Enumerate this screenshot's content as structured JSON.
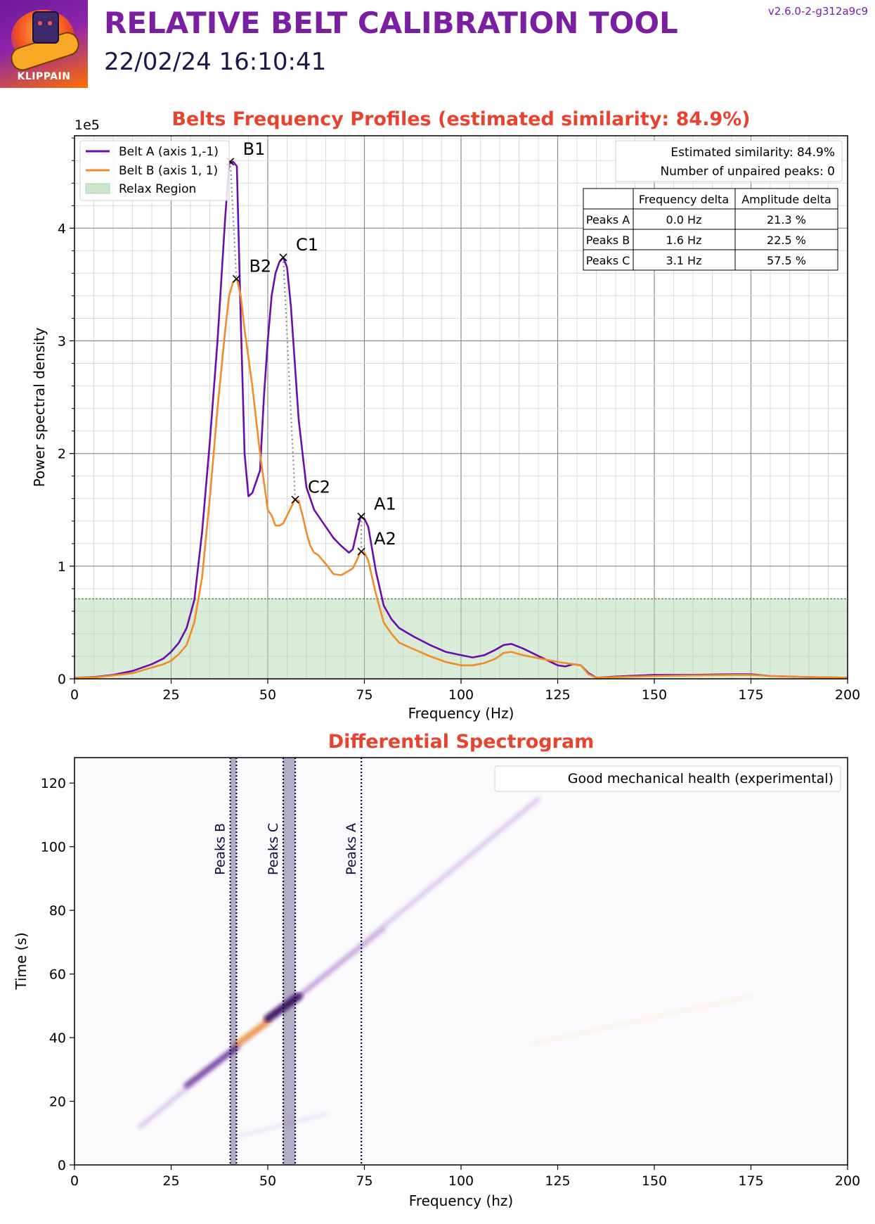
{
  "header": {
    "logo_text": "KLIPPAIN",
    "title": "RELATIVE BELT CALIBRATION TOOL",
    "datetime": "22/02/24 16:10:41",
    "version": "v2.6.0-2-g312a9c9"
  },
  "colors": {
    "title": "#7b1fa2",
    "chart_title": "#e8432e",
    "belt_a": "#6a0dad",
    "belt_b": "#f28c28",
    "relax_region": "#a8d5a8",
    "peak_band": "#2e1a5c"
  },
  "chart_data": [
    {
      "type": "line",
      "title": "Belts Frequency Profiles (estimated similarity: 84.9%)",
      "xlabel": "Frequency (Hz)",
      "ylabel": "Power spectral density",
      "y_scale_label": "1e5",
      "xlim": [
        0,
        200
      ],
      "ylim": [
        0,
        4.82
      ],
      "x_ticks": [
        "0",
        "25",
        "50",
        "75",
        "100",
        "125",
        "150",
        "175",
        "200"
      ],
      "y_ticks": [
        "0",
        "1",
        "2",
        "3",
        "4"
      ],
      "grid": true,
      "legend_position": "top-left",
      "series": [
        {
          "name": "Belt A (axis 1,-1)",
          "color": "#6a0dad",
          "points": [
            [
              0,
              0.01
            ],
            [
              5,
              0.015
            ],
            [
              10,
              0.035
            ],
            [
              15,
              0.07
            ],
            [
              20,
              0.13
            ],
            [
              23,
              0.18
            ],
            [
              25,
              0.24
            ],
            [
              27,
              0.32
            ],
            [
              29,
              0.45
            ],
            [
              31,
              0.7
            ],
            [
              33,
              1.3
            ],
            [
              35,
              2.1
            ],
            [
              37,
              3.0
            ],
            [
              39,
              4.1
            ],
            [
              40,
              4.57
            ],
            [
              41,
              4.59
            ],
            [
              42,
              4.55
            ],
            [
              43,
              3.2
            ],
            [
              44,
              2.0
            ],
            [
              45,
              1.62
            ],
            [
              46,
              1.65
            ],
            [
              47,
              1.75
            ],
            [
              48,
              1.85
            ],
            [
              49,
              2.5
            ],
            [
              50,
              3.0
            ],
            [
              51,
              3.4
            ],
            [
              52,
              3.6
            ],
            [
              53,
              3.7
            ],
            [
              54,
              3.74
            ],
            [
              55,
              3.65
            ],
            [
              56,
              3.3
            ],
            [
              57,
              2.8
            ],
            [
              58,
              2.3
            ],
            [
              59,
              2.0
            ],
            [
              60,
              1.7
            ],
            [
              61,
              1.6
            ],
            [
              62,
              1.5
            ],
            [
              63,
              1.45
            ],
            [
              65,
              1.35
            ],
            [
              67,
              1.25
            ],
            [
              69,
              1.18
            ],
            [
              71,
              1.12
            ],
            [
              72,
              1.15
            ],
            [
              73,
              1.3
            ],
            [
              74,
              1.44
            ],
            [
              75,
              1.42
            ],
            [
              76,
              1.35
            ],
            [
              77,
              1.15
            ],
            [
              78,
              0.95
            ],
            [
              80,
              0.65
            ],
            [
              82,
              0.53
            ],
            [
              84,
              0.45
            ],
            [
              88,
              0.37
            ],
            [
              92,
              0.3
            ],
            [
              96,
              0.24
            ],
            [
              100,
              0.21
            ],
            [
              103,
              0.19
            ],
            [
              106,
              0.21
            ],
            [
              109,
              0.26
            ],
            [
              111,
              0.3
            ],
            [
              113,
              0.31
            ],
            [
              116,
              0.27
            ],
            [
              119,
              0.22
            ],
            [
              122,
              0.17
            ],
            [
              125,
              0.12
            ],
            [
              127,
              0.11
            ],
            [
              129,
              0.13
            ],
            [
              131,
              0.12
            ],
            [
              133,
              0.05
            ],
            [
              135,
              0.01
            ],
            [
              140,
              0.02
            ],
            [
              150,
              0.035
            ],
            [
              160,
              0.035
            ],
            [
              170,
              0.04
            ],
            [
              175,
              0.04
            ],
            [
              180,
              0.025
            ],
            [
              190,
              0.015
            ],
            [
              200,
              0.01
            ]
          ]
        },
        {
          "name": "Belt B (axis 1, 1)",
          "color": "#f28c28",
          "points": [
            [
              0,
              0.01
            ],
            [
              5,
              0.012
            ],
            [
              10,
              0.03
            ],
            [
              15,
              0.05
            ],
            [
              20,
              0.1
            ],
            [
              23,
              0.13
            ],
            [
              25,
              0.16
            ],
            [
              27,
              0.22
            ],
            [
              29,
              0.3
            ],
            [
              31,
              0.5
            ],
            [
              33,
              0.9
            ],
            [
              35,
              1.6
            ],
            [
              37,
              2.4
            ],
            [
              39,
              3.1
            ],
            [
              40,
              3.4
            ],
            [
              41,
              3.52
            ],
            [
              42,
              3.55
            ],
            [
              43,
              3.4
            ],
            [
              44,
              3.1
            ],
            [
              46,
              2.6
            ],
            [
              47,
              2.3
            ],
            [
              48,
              2.0
            ],
            [
              49,
              1.75
            ],
            [
              50,
              1.5
            ],
            [
              51,
              1.45
            ],
            [
              52,
              1.36
            ],
            [
              53,
              1.36
            ],
            [
              54,
              1.38
            ],
            [
              55,
              1.45
            ],
            [
              56,
              1.52
            ],
            [
              57,
              1.59
            ],
            [
              58,
              1.58
            ],
            [
              59,
              1.45
            ],
            [
              60,
              1.3
            ],
            [
              61,
              1.18
            ],
            [
              62,
              1.12
            ],
            [
              63,
              1.1
            ],
            [
              65,
              1.02
            ],
            [
              67,
              0.93
            ],
            [
              69,
              0.92
            ],
            [
              71,
              0.96
            ],
            [
              72,
              0.98
            ],
            [
              73,
              1.05
            ],
            [
              74,
              1.13
            ],
            [
              75,
              1.12
            ],
            [
              76,
              1.05
            ],
            [
              78,
              0.75
            ],
            [
              80,
              0.5
            ],
            [
              82,
              0.4
            ],
            [
              84,
              0.32
            ],
            [
              88,
              0.26
            ],
            [
              92,
              0.2
            ],
            [
              96,
              0.15
            ],
            [
              100,
              0.12
            ],
            [
              103,
              0.12
            ],
            [
              106,
              0.14
            ],
            [
              109,
              0.18
            ],
            [
              111,
              0.23
            ],
            [
              113,
              0.24
            ],
            [
              116,
              0.21
            ],
            [
              119,
              0.19
            ],
            [
              122,
              0.17
            ],
            [
              125,
              0.15
            ],
            [
              127,
              0.14
            ],
            [
              129,
              0.13
            ],
            [
              131,
              0.12
            ],
            [
              133,
              0.04
            ],
            [
              135,
              0.01
            ],
            [
              140,
              0.015
            ],
            [
              150,
              0.025
            ],
            [
              160,
              0.03
            ],
            [
              170,
              0.035
            ],
            [
              175,
              0.035
            ],
            [
              180,
              0.025
            ],
            [
              190,
              0.015
            ],
            [
              200,
              0.01
            ]
          ]
        }
      ],
      "relax_region": {
        "label": "Relax Region",
        "y_max": 0.71
      },
      "peaks": [
        {
          "label": "B1",
          "freq": 40.3,
          "value": 4.59,
          "series": "A"
        },
        {
          "label": "B2",
          "freq": 41.9,
          "value": 3.55,
          "series": "B"
        },
        {
          "label": "C1",
          "freq": 54.0,
          "value": 3.74,
          "series": "A"
        },
        {
          "label": "C2",
          "freq": 57.1,
          "value": 1.59,
          "series": "B"
        },
        {
          "label": "A1",
          "freq": 74.2,
          "value": 1.44,
          "series": "A"
        },
        {
          "label": "A2",
          "freq": 74.2,
          "value": 1.13,
          "series": "B"
        }
      ],
      "peak_links": [
        {
          "from": "B1",
          "to": "B2"
        },
        {
          "from": "C1",
          "to": "C2"
        },
        {
          "from": "A1",
          "to": "A2"
        }
      ],
      "info_box": [
        "Estimated similarity: 84.9%",
        "Number of unpaired peaks: 0"
      ],
      "table": {
        "columns": [
          "",
          "Frequency delta",
          "Amplitude delta"
        ],
        "rows": [
          [
            "Peaks A",
            "0.0 Hz",
            "21.3 %"
          ],
          [
            "Peaks B",
            "1.6 Hz",
            "22.5 %"
          ],
          [
            "Peaks C",
            "3.1 Hz",
            "57.5 %"
          ]
        ]
      }
    },
    {
      "type": "heatmap",
      "title": "Differential Spectrogram",
      "xlabel": "Frequency (hz)",
      "ylabel": "Time (s)",
      "xlim": [
        0,
        200
      ],
      "ylim": [
        0,
        128
      ],
      "x_ticks": [
        "0",
        "25",
        "50",
        "75",
        "100",
        "125",
        "150",
        "175",
        "200"
      ],
      "y_ticks": [
        "0",
        "20",
        "40",
        "60",
        "80",
        "100",
        "120"
      ],
      "legend_text": "Good mechanical health (experimental)",
      "peak_bands": [
        {
          "label": "Peaks B",
          "f_min": 40.3,
          "f_max": 41.9
        },
        {
          "label": "Peaks C",
          "f_min": 54.0,
          "f_max": 57.1
        },
        {
          "label": "Peaks A",
          "f_min": 74.2,
          "f_max": 74.2
        }
      ],
      "streaks": [
        {
          "f0": 17,
          "t0": 12,
          "f1": 120,
          "t1": 115,
          "color": "#6a0dad",
          "opacity": 0.22,
          "width": 6
        },
        {
          "f0": 29,
          "t0": 25,
          "f1": 42,
          "t1": 37,
          "color": "#5a1a8a",
          "opacity": 0.75,
          "width": 8
        },
        {
          "f0": 42,
          "t0": 38,
          "f1": 50,
          "t1": 45,
          "color": "#f28c28",
          "opacity": 0.85,
          "width": 8
        },
        {
          "f0": 50,
          "t0": 46,
          "f1": 58,
          "t1": 53,
          "color": "#3b0a5e",
          "opacity": 0.95,
          "width": 11
        },
        {
          "f0": 58,
          "t0": 53,
          "f1": 80,
          "t1": 74,
          "color": "#7b3fb0",
          "opacity": 0.3,
          "width": 6
        },
        {
          "f0": 42,
          "t0": 9,
          "f1": 65,
          "t1": 16,
          "color": "#6a0dad",
          "opacity": 0.12,
          "width": 4
        },
        {
          "f0": 118,
          "t0": 38,
          "f1": 175,
          "t1": 53,
          "color": "#f28c28",
          "opacity": 0.1,
          "width": 4
        }
      ]
    }
  ]
}
